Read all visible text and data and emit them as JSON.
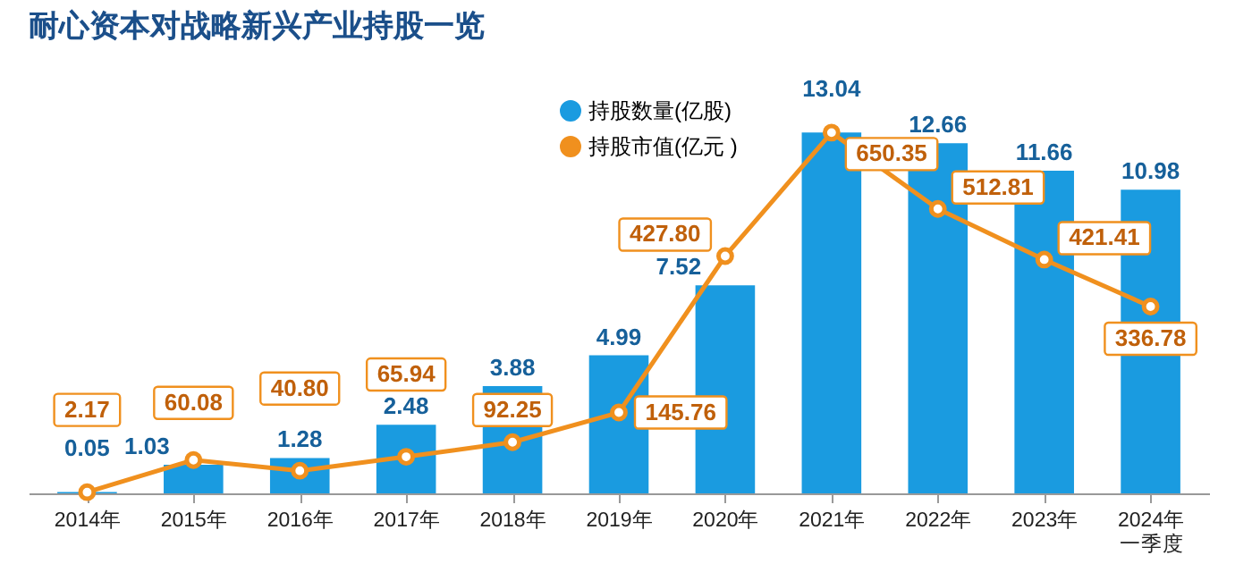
{
  "chart_data": {
    "type": "bar",
    "title": "耐心资本对战略新兴产业持股一览",
    "categories": [
      "2014年",
      "2015年",
      "2016年",
      "2017年",
      "2018年",
      "2019年",
      "2020年",
      "2021年",
      "2022年",
      "2023年",
      "2024年一季度"
    ],
    "series": [
      {
        "name": "持股数量(亿股)",
        "color": "#1a9be0",
        "values": [
          0.05,
          1.03,
          1.28,
          2.48,
          3.88,
          4.99,
          7.52,
          13.04,
          12.66,
          11.66,
          10.98
        ]
      },
      {
        "name": "持股市值(亿元 )",
        "type": "line",
        "axis": "y2",
        "color": "#f0901e",
        "values": [
          2.17,
          60.08,
          40.8,
          65.94,
          92.25,
          145.76,
          427.8,
          650.35,
          512.81,
          421.41,
          336.78
        ],
        "value_labels": [
          "2.17",
          "60.08",
          "40.80",
          "65.94",
          "92.25",
          "145.76",
          "427.80",
          "650.35",
          "512.81",
          "421.41",
          "336.78"
        ]
      }
    ],
    "data_labels": true,
    "legend": "top",
    "tick_labels": "x",
    "marker": "circle",
    "grid": false
  }
}
